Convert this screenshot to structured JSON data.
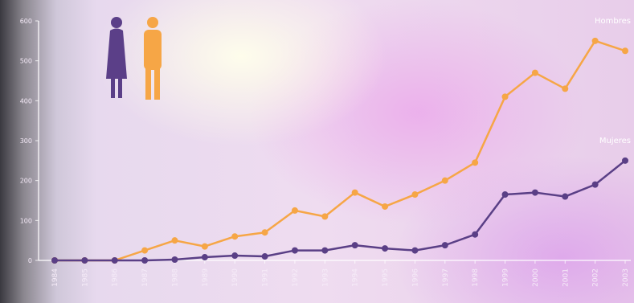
{
  "chart_data": {
    "type": "line",
    "title": "",
    "xlabel": "",
    "ylabel": "",
    "x": [
      "1984",
      "1985",
      "1986",
      "1987",
      "1988",
      "1989",
      "1990",
      "1991",
      "1992",
      "1993",
      "1994",
      "1995",
      "1996",
      "1997",
      "1998",
      "1999",
      "2000",
      "2001",
      "2002",
      "2003"
    ],
    "y_ticks": [
      "0",
      "100",
      "200",
      "300",
      "400",
      "500",
      "600"
    ],
    "ylim": [
      0,
      600
    ],
    "grid": false,
    "series": [
      {
        "name": "Hombres",
        "color": "#f6a646",
        "values": [
          0,
          0,
          0,
          25,
          50,
          35,
          60,
          70,
          125,
          110,
          170,
          135,
          165,
          200,
          245,
          410,
          470,
          430,
          550,
          525
        ]
      },
      {
        "name": "Mujeres",
        "color": "#5a3f86",
        "values": [
          0,
          0,
          0,
          0,
          2,
          8,
          12,
          10,
          25,
          25,
          38,
          30,
          25,
          38,
          65,
          165,
          170,
          160,
          190,
          250
        ]
      }
    ]
  },
  "icons": [
    "female-figure-icon",
    "male-figure-icon"
  ]
}
